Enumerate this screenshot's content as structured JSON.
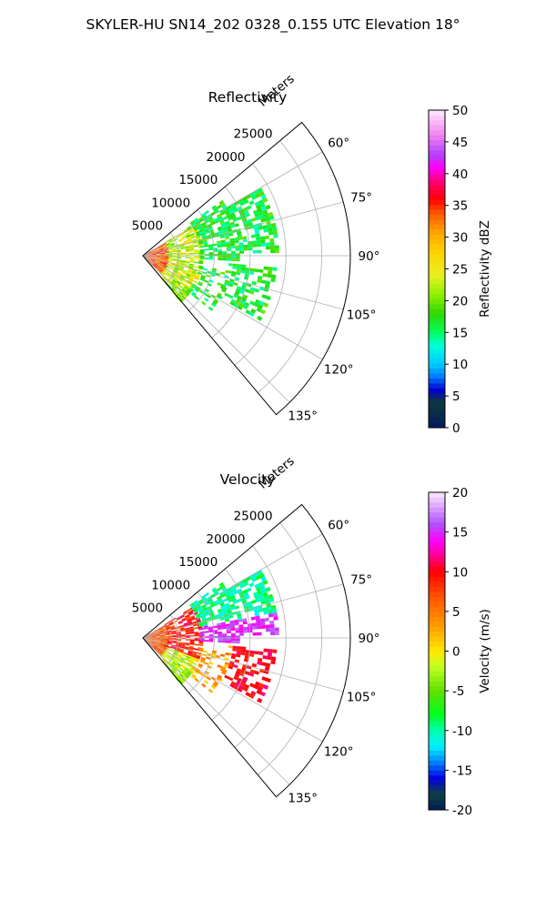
{
  "figure_title": "SKYLER-HU  SN14_202  0328_0.155 UTC Elevation 18°",
  "colors": {
    "axis": "#000000",
    "grid": "#b0b0b0",
    "background": "#ffffff"
  },
  "chart_data": [
    {
      "type": "polar_sector_radar",
      "title": "Reflectivity",
      "range_label": "Meters",
      "range_ticks": [
        "5000",
        "10000",
        "15000",
        "20000",
        "25000"
      ],
      "range_tick_values": [
        5000,
        10000,
        15000,
        20000,
        25000
      ],
      "rmax": 29000,
      "azimuth_ticks": [
        "60°",
        "75°",
        "90°",
        "105°",
        "120°",
        "135°"
      ],
      "azimuth_tick_values": [
        60,
        75,
        90,
        105,
        120,
        135
      ],
      "azimuth_range": [
        50,
        140
      ],
      "grid": true,
      "colorbar": {
        "label": "Reflectivity dBZ",
        "min": 0,
        "max": 50,
        "ticks": [
          "0",
          "5",
          "10",
          "15",
          "20",
          "25",
          "30",
          "35",
          "40",
          "45",
          "50"
        ],
        "tick_values": [
          0,
          5,
          10,
          15,
          20,
          25,
          30,
          35,
          40,
          45,
          50
        ],
        "colormap": [
          [
            0,
            "#001a5e"
          ],
          [
            4,
            "#103a3a"
          ],
          [
            6,
            "#0000d0"
          ],
          [
            8,
            "#0078ff"
          ],
          [
            10,
            "#00c8ff"
          ],
          [
            13,
            "#00ffd8"
          ],
          [
            15,
            "#00ff60"
          ],
          [
            18,
            "#30d800"
          ],
          [
            21,
            "#90f000"
          ],
          [
            24,
            "#e8f020"
          ],
          [
            28,
            "#ffd000"
          ],
          [
            31,
            "#ffa000"
          ],
          [
            34,
            "#ff5000"
          ],
          [
            36,
            "#ff0000"
          ],
          [
            39,
            "#ff0080"
          ],
          [
            41,
            "#ff00ff"
          ],
          [
            43,
            "#b040ff"
          ],
          [
            46,
            "#f080f0"
          ],
          [
            50,
            "#ffe8ff"
          ]
        ]
      }
    },
    {
      "type": "polar_sector_radar",
      "title": "Velocity",
      "range_label": "Meters",
      "range_ticks": [
        "5000",
        "10000",
        "15000",
        "20000",
        "25000"
      ],
      "range_tick_values": [
        5000,
        10000,
        15000,
        20000,
        25000
      ],
      "rmax": 29000,
      "azimuth_ticks": [
        "60°",
        "75°",
        "90°",
        "105°",
        "120°",
        "135°"
      ],
      "azimuth_tick_values": [
        60,
        75,
        90,
        105,
        120,
        135
      ],
      "azimuth_range": [
        50,
        140
      ],
      "grid": true,
      "colorbar": {
        "label": "Velocity (m/s)",
        "min": -20,
        "max": 20,
        "ticks": [
          "-20",
          "-15",
          "-10",
          "-5",
          "0",
          "5",
          "10",
          "15",
          "20"
        ],
        "tick_values": [
          -20,
          -15,
          -10,
          -5,
          0,
          5,
          10,
          15,
          20
        ],
        "colormap": [
          [
            -20,
            "#001a5e"
          ],
          [
            -18,
            "#104040"
          ],
          [
            -16,
            "#0000e0"
          ],
          [
            -14,
            "#0080ff"
          ],
          [
            -12,
            "#00f0ff"
          ],
          [
            -10,
            "#00ffb0"
          ],
          [
            -8,
            "#00ff20"
          ],
          [
            -5,
            "#60e000"
          ],
          [
            -2,
            "#c0ff20"
          ],
          [
            0,
            "#ffe800"
          ],
          [
            3,
            "#ffa000"
          ],
          [
            7,
            "#ff5000"
          ],
          [
            10,
            "#ff0000"
          ],
          [
            12,
            "#ff0090"
          ],
          [
            14,
            "#ff00ff"
          ],
          [
            16,
            "#b050ff"
          ],
          [
            20,
            "#ffe8ff"
          ]
        ]
      }
    }
  ]
}
